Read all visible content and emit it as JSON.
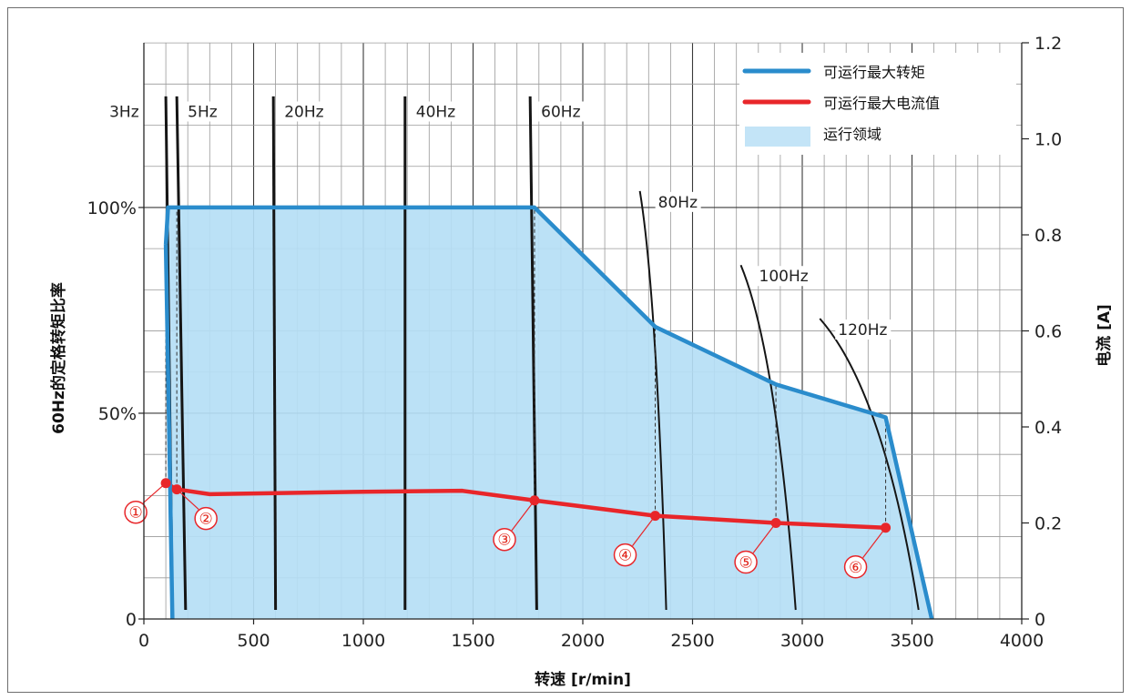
{
  "chart_data": {
    "type": "line",
    "xlabel": "转速 [r/min]",
    "ylabel_left": "60Hz的定格转矩比率",
    "ylabel_right": "电流 [A]",
    "xlim": [
      0,
      4000
    ],
    "ylim_left": [
      0,
      100
    ],
    "ylim_right": [
      0,
      1.2
    ],
    "x_ticks": [
      0,
      500,
      1000,
      1500,
      2000,
      2500,
      3000,
      3500,
      4000
    ],
    "x_tick_labels": [
      "0",
      "500",
      "1000",
      "1500",
      "2000",
      "2500",
      "3000",
      "3500",
      "4000"
    ],
    "y_left_ticks": [
      0,
      50,
      100
    ],
    "y_left_tick_labels": [
      "0",
      "50%",
      "100%"
    ],
    "y_right_ticks": [
      0,
      0.2,
      0.4,
      0.6,
      0.8,
      1.0,
      1.2
    ],
    "y_right_tick_labels": [
      "0",
      "0.2",
      "0.4",
      "0.6",
      "0.8",
      "1.0",
      "1.2"
    ],
    "grid": true,
    "legend_position": "top-right",
    "legend": [
      {
        "label": "可运行最大转矩",
        "color": "#2a8ccc",
        "kind": "line"
      },
      {
        "label": "可运行最大电流值",
        "color": "#e8262a",
        "kind": "line"
      },
      {
        "label": "运行领域",
        "color": "#c3e4f7",
        "kind": "area"
      }
    ],
    "series": [
      {
        "name": "可运行最大转矩",
        "axis": "left",
        "color": "#2a8ccc",
        "x": [
          100,
          110,
          150,
          1780,
          2330,
          2880,
          3380,
          3590
        ],
        "y": [
          91,
          100,
          100,
          100,
          71,
          57,
          49,
          0
        ]
      },
      {
        "name": "可运行最大电流值",
        "axis": "right",
        "color": "#e8262a",
        "x": [
          100,
          150,
          300,
          1000,
          1450,
          1780,
          2330,
          2880,
          3380
        ],
        "y": [
          0.283,
          0.27,
          0.26,
          0.265,
          0.267,
          0.247,
          0.215,
          0.2,
          0.19
        ]
      }
    ],
    "area": {
      "name": "运行领域",
      "x": [
        130,
        100,
        110,
        150,
        1780,
        2330,
        2880,
        3380,
        3590
      ],
      "y": [
        0,
        91,
        100,
        100,
        100,
        71,
        57,
        49,
        0
      ]
    },
    "frequency_curves": [
      {
        "label": "3Hz",
        "x_top": 100,
        "x_bottom": 130,
        "y_top": 127
      },
      {
        "label": "5Hz",
        "x_top": 150,
        "x_bottom": 190,
        "y_top": 127
      },
      {
        "label": "20Hz",
        "x_top": 590,
        "x_bottom": 600,
        "y_top": 127
      },
      {
        "label": "40Hz",
        "x_top": 1190,
        "x_bottom": 1190,
        "y_top": 127
      },
      {
        "label": "60Hz",
        "x_top": 1760,
        "x_bottom": 1790,
        "y_top": 127
      },
      {
        "label": "80Hz",
        "x_top": 2260,
        "x_bottom": 2380,
        "y_top": 104
      },
      {
        "label": "100Hz",
        "x_top": 2720,
        "x_bottom": 2970,
        "y_top": 86
      },
      {
        "label": "120Hz",
        "x_top": 3080,
        "x_bottom": 3530,
        "y_top": 73
      }
    ],
    "markers": [
      {
        "label": "①",
        "x": 100,
        "current": 0.283
      },
      {
        "label": "②",
        "x": 150,
        "current": 0.27
      },
      {
        "label": "③",
        "x": 1780,
        "current": 0.247
      },
      {
        "label": "④",
        "x": 2330,
        "current": 0.215
      },
      {
        "label": "⑤",
        "x": 2880,
        "current": 0.2
      },
      {
        "label": "⑥",
        "x": 3380,
        "current": 0.19
      }
    ]
  }
}
